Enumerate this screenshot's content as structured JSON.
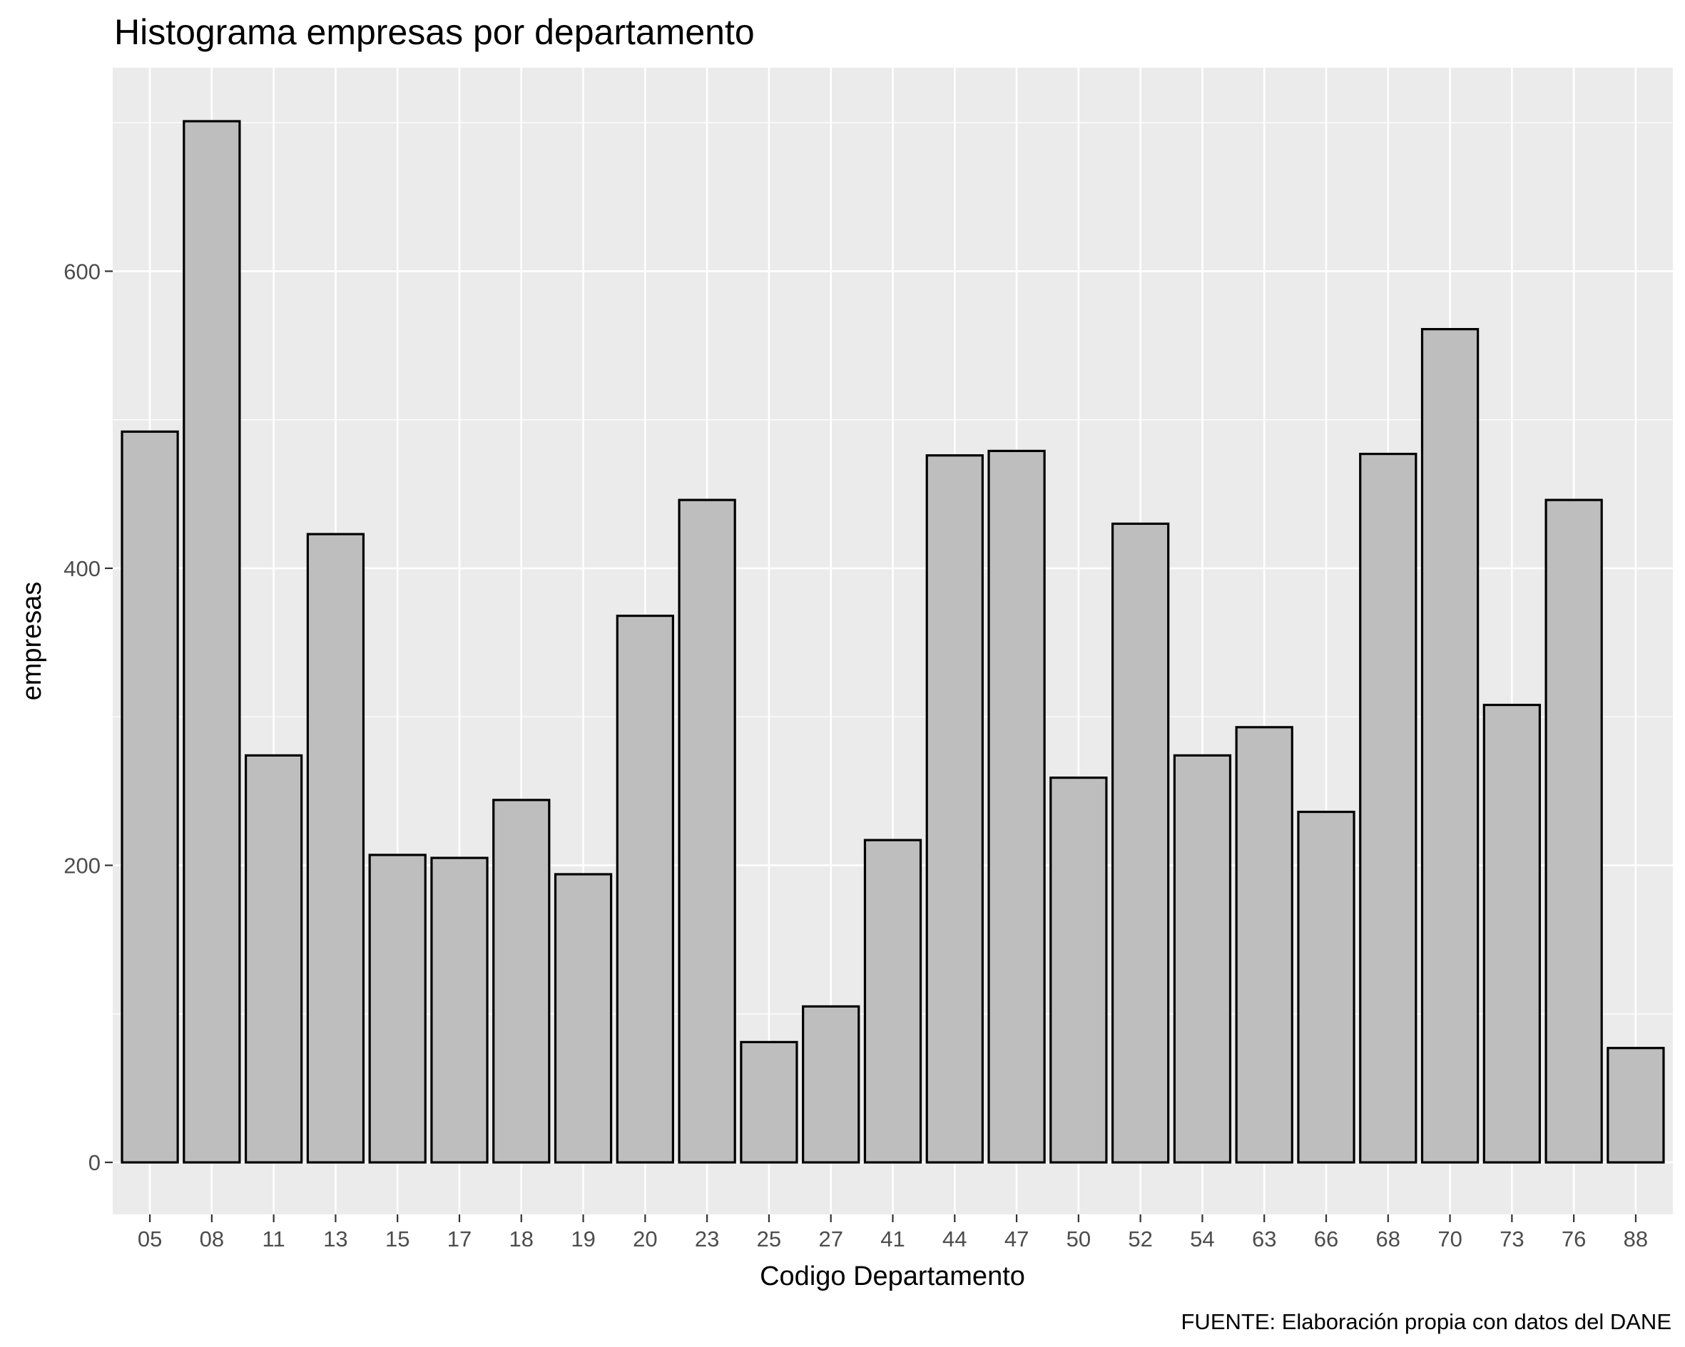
{
  "chart_data": {
    "type": "bar",
    "title": "Histograma empresas por departamento",
    "xlabel": "Codigo Departamento",
    "ylabel": "empresas",
    "caption": "FUENTE: Elaboración propia con datos del DANE",
    "categories": [
      "05",
      "08",
      "11",
      "13",
      "15",
      "17",
      "18",
      "19",
      "20",
      "23",
      "25",
      "27",
      "41",
      "44",
      "47",
      "50",
      "52",
      "54",
      "63",
      "66",
      "68",
      "70",
      "73",
      "76",
      "88"
    ],
    "values": [
      492,
      701,
      274,
      423,
      207,
      205,
      244,
      194,
      368,
      446,
      81,
      105,
      217,
      476,
      479,
      259,
      430,
      274,
      293,
      236,
      477,
      561,
      308,
      446,
      77
    ],
    "ylim": [
      -35,
      737
    ],
    "yticks": [
      0,
      200,
      400,
      600
    ],
    "ytick_labels": [
      "0",
      "200",
      "400",
      "600"
    ],
    "grid": true,
    "colors": {
      "panel": "#ebebeb",
      "grid": "#ffffff",
      "bar_fill": "#bebebe",
      "bar_stroke": "#000000"
    }
  }
}
